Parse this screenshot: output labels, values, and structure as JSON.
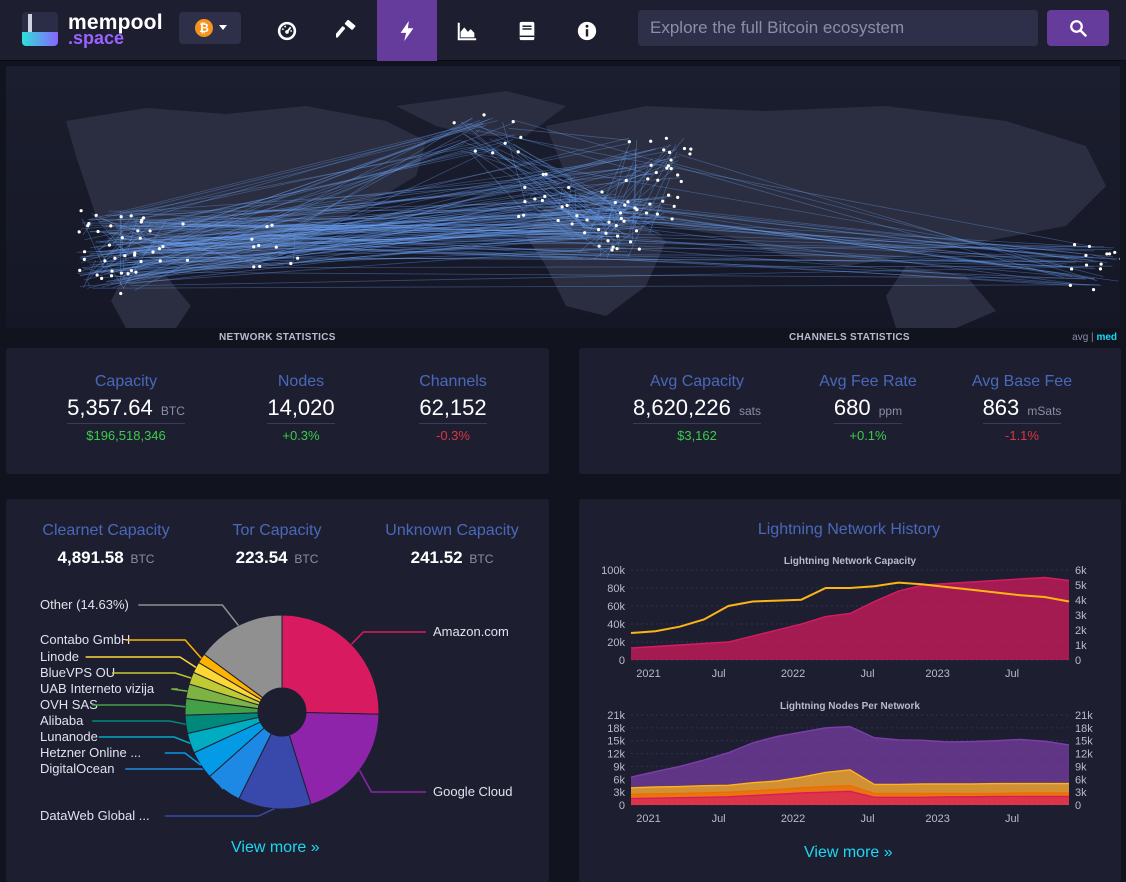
{
  "nav": {
    "logo_line1": "mempool",
    "logo_line2": ".space",
    "network_symbol": "₿",
    "items": [
      "dashboard-icon",
      "mining-icon",
      "lightning-icon",
      "graphs-icon",
      "docs-icon",
      "about-icon"
    ],
    "active_index": 2,
    "search_placeholder": "Explore the full Bitcoin ecosystem"
  },
  "sections": {
    "network": "NETWORK STATISTICS",
    "channels": "CHANNELS STATISTICS",
    "avg": "avg",
    "sep": "|",
    "med": "med"
  },
  "network_stats": [
    {
      "title": "Capacity",
      "value": "5,357.64",
      "unit": "BTC",
      "sub": "$196,518,346",
      "sub_color": "green"
    },
    {
      "title": "Nodes",
      "value": "14,020",
      "unit": "",
      "sub": "+0.3%",
      "sub_color": "green"
    },
    {
      "title": "Channels",
      "value": "62,152",
      "unit": "",
      "sub": "-0.3%",
      "sub_color": "red"
    }
  ],
  "channel_stats": [
    {
      "title": "Avg Capacity",
      "value": "8,620,226",
      "unit": "sats",
      "sub": "$3,162",
      "sub_color": "green"
    },
    {
      "title": "Avg Fee Rate",
      "value": "680",
      "unit": "ppm",
      "sub": "+0.1%",
      "sub_color": "green"
    },
    {
      "title": "Avg Base Fee",
      "value": "863",
      "unit": "mSats",
      "sub": "-1.1%",
      "sub_color": "red"
    }
  ],
  "capacity_breakdown": [
    {
      "title": "Clearnet Capacity",
      "value": "4,891.58",
      "unit": "BTC"
    },
    {
      "title": "Tor Capacity",
      "value": "223.54",
      "unit": "BTC"
    },
    {
      "title": "Unknown Capacity",
      "value": "241.52",
      "unit": "BTC"
    }
  ],
  "isp_pie": {
    "slices": [
      {
        "label": "Amazon.com",
        "share": 25.0,
        "color": "#d81b60"
      },
      {
        "label": "Google Cloud",
        "share": 19.5,
        "color": "#8e24aa"
      },
      {
        "label": "DataWeb Global ...",
        "share": 12.0,
        "color": "#3949ab"
      },
      {
        "label": "DigitalOcean",
        "share": 6.0,
        "color": "#1e88e5"
      },
      {
        "label": "Hetzner Online ...",
        "share": 4.6,
        "color": "#039be5"
      },
      {
        "label": "Lunanode",
        "share": 3.3,
        "color": "#00acc1"
      },
      {
        "label": "Alibaba",
        "share": 3.0,
        "color": "#00897b"
      },
      {
        "label": "OVH SAS",
        "share": 2.7,
        "color": "#43a047"
      },
      {
        "label": "UAB Interneto vizija",
        "share": 2.4,
        "color": "#7cb342"
      },
      {
        "label": "BlueVPS OU",
        "share": 2.0,
        "color": "#c0ca33"
      },
      {
        "label": "Linode",
        "share": 1.8,
        "color": "#fdd835"
      },
      {
        "label": "Contabo GmbH",
        "share": 1.6,
        "color": "#ffb300"
      },
      {
        "label": "Other (14.63%)",
        "share": 14.63,
        "color": "#909090"
      }
    ]
  },
  "view_more": "View more »",
  "history": {
    "title": "Lightning Network History",
    "chart1_title": "Lightning Network Capacity",
    "chart2_title": "Lightning Nodes Per Network"
  },
  "chart_data": [
    {
      "type": "area",
      "title": "Lightning Network Capacity",
      "x_ticks": [
        "2021",
        "Jul",
        "2022",
        "Jul",
        "2023",
        "Jul"
      ],
      "y_ticks_left": [
        "100k",
        "80k",
        "60k",
        "40k",
        "20k",
        "0"
      ],
      "y_ticks_right": [
        "6k",
        "5k",
        "4k",
        "3k",
        "2k",
        "1k",
        "0"
      ],
      "ylim_left": [
        0,
        100000
      ],
      "ylim_right": [
        0,
        6000
      ],
      "grid": true,
      "x": [
        "2020-11",
        "2021-01",
        "2021-03",
        "2021-05",
        "2021-07",
        "2021-09",
        "2021-11",
        "2022-01",
        "2022-03",
        "2022-05",
        "2022-07",
        "2022-09",
        "2022-11",
        "2023-01",
        "2023-03",
        "2023-05",
        "2023-07",
        "2023-09",
        "2023-10"
      ],
      "series": [
        {
          "axis": "right",
          "color": "#d81b60",
          "values": [
            800,
            900,
            1000,
            1100,
            1200,
            1600,
            2000,
            2400,
            2900,
            3100,
            3900,
            4600,
            5000,
            5100,
            5200,
            5300,
            5400,
            5500,
            5300
          ]
        },
        {
          "axis": "left",
          "color": "#fdb415",
          "values": [
            30000,
            32000,
            37000,
            45000,
            60000,
            65000,
            66000,
            67000,
            80000,
            80000,
            82000,
            86000,
            84000,
            81000,
            78000,
            75000,
            72000,
            70000,
            65000
          ]
        }
      ]
    },
    {
      "type": "area",
      "title": "Lightning Nodes Per Network",
      "x_ticks": [
        "2021",
        "Jul",
        "2022",
        "Jul",
        "2023",
        "Jul"
      ],
      "y_ticks_left": [
        "21k",
        "18k",
        "15k",
        "12k",
        "9k",
        "6k",
        "3k",
        "0"
      ],
      "y_ticks_right": [
        "21k",
        "18k",
        "15k",
        "12k",
        "9k",
        "6k",
        "3k",
        "0"
      ],
      "ylim_left": [
        0,
        21000
      ],
      "ylim_right": [
        0,
        21000
      ],
      "grid": true,
      "x": [
        "2020-11",
        "2021-01",
        "2021-03",
        "2021-05",
        "2021-07",
        "2021-09",
        "2021-11",
        "2022-01",
        "2022-03",
        "2022-05",
        "2022-07",
        "2022-09",
        "2022-11",
        "2023-01",
        "2023-03",
        "2023-05",
        "2023-07",
        "2023-09",
        "2023-10"
      ],
      "series": [
        {
          "color": "#d81b60",
          "values": [
            1500,
            1600,
            1700,
            1800,
            1900,
            2200,
            2500,
            2800,
            3000,
            3200,
            1800,
            1800,
            1800,
            1900,
            1900,
            2000,
            2000,
            2000,
            2000
          ]
        },
        {
          "color": "#ef6c00",
          "values": [
            2500,
            2600,
            2700,
            2800,
            3000,
            3300,
            3600,
            4000,
            4300,
            4500,
            2700,
            2700,
            2700,
            2700,
            2700,
            2700,
            2800,
            2800,
            2800
          ]
        },
        {
          "color": "#fdb415",
          "values": [
            4000,
            4200,
            4300,
            4500,
            4600,
            5200,
            5600,
            6500,
            7600,
            8200,
            4800,
            4800,
            4900,
            4900,
            4900,
            5000,
            5000,
            5000,
            5000
          ]
        },
        {
          "color": "#7b3fa8",
          "values": [
            6500,
            7800,
            9000,
            10500,
            12200,
            14500,
            16000,
            17000,
            18000,
            18300,
            15700,
            15200,
            15100,
            14700,
            14800,
            15000,
            15300,
            14900,
            14000
          ]
        }
      ]
    }
  ]
}
